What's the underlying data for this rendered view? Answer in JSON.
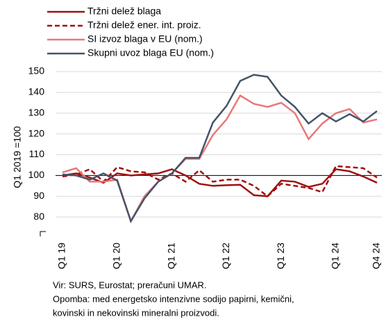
{
  "chart_data": {
    "type": "line",
    "ylabel": "Q1 2019 =100",
    "categories": [
      "Q1 19",
      null,
      null,
      null,
      "Q1 20",
      null,
      null,
      null,
      "Q1 21",
      null,
      null,
      null,
      "Q1 22",
      null,
      null,
      null,
      "Q1 23",
      null,
      null,
      null,
      "Q1 24",
      null,
      null,
      "Q4 24"
    ],
    "series": [
      {
        "name": "Tržni delež blaga",
        "color": "#a01010",
        "dash": false,
        "values": [
          100,
          101,
          99,
          96.5,
          101,
          100,
          100.5,
          101,
          103,
          100,
          96,
          95,
          95.3,
          95.5,
          90.5,
          90,
          97.5,
          97,
          94.5,
          96,
          103,
          102,
          99.5,
          96.5
        ]
      },
      {
        "name": "Tržni delež ener. int. proiz.",
        "color": "#a01010",
        "dash": true,
        "values": [
          99.5,
          100.5,
          103,
          97,
          104,
          102,
          101.5,
          98,
          101,
          97,
          102.5,
          97,
          98,
          98,
          95,
          90,
          96,
          95,
          94,
          92,
          104.5,
          104,
          103.5,
          99
        ]
      },
      {
        "name": "SI izvoz blaga v EU (nom.)",
        "color": "#e87878",
        "dash": false,
        "values": [
          101.5,
          103.5,
          97,
          97,
          98,
          78,
          90,
          97,
          101,
          108,
          108,
          119.5,
          127,
          138.5,
          134.5,
          133,
          135,
          130,
          117.5,
          125,
          130,
          132,
          125.5,
          127
        ]
      },
      {
        "name": "Skupni uvoz blaga EU (nom.)",
        "color": "#44546a",
        "dash": false,
        "values": [
          100.5,
          100,
          98,
          101,
          97.5,
          78,
          89,
          97,
          101,
          108.5,
          108.5,
          125.5,
          133.5,
          145.5,
          148.5,
          147.5,
          138.5,
          133,
          125,
          130,
          126,
          129.5,
          126,
          131
        ]
      }
    ],
    "ylim": [
      70,
      150
    ],
    "yticks": [
      80,
      90,
      100,
      110,
      120,
      130,
      140,
      150
    ],
    "grid": true,
    "reference_line": 100,
    "notes": [
      "Vir: SURS, Eurostat; preračuni UMAR.",
      "Opomba: med energetsko intenzivne sodijo papirni, kemični,",
      "kovinski in nekovinski mineralni proizvodi."
    ]
  }
}
